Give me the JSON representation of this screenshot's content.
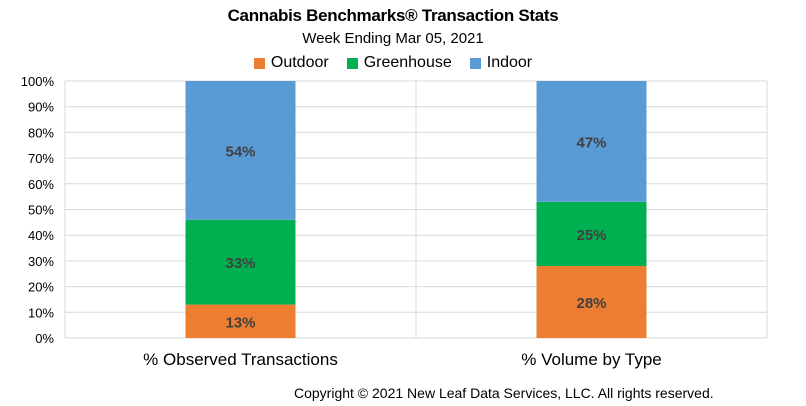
{
  "chart_data": {
    "type": "bar",
    "stacked": true,
    "title": "Cannabis Benchmarks® Transaction Stats",
    "subtitle": "Week Ending Mar 05, 2021",
    "categories": [
      "% Observed Transactions",
      "% Volume by Type"
    ],
    "series": [
      {
        "name": "Outdoor",
        "color": "#ed7d31",
        "values": [
          13,
          28
        ]
      },
      {
        "name": "Greenhouse",
        "color": "#00b050",
        "values": [
          33,
          25
        ]
      },
      {
        "name": "Indoor",
        "color": "#5b9bd5",
        "values": [
          54,
          47
        ]
      }
    ],
    "data_labels": [
      [
        "13%",
        "33%",
        "54%"
      ],
      [
        "28%",
        "25%",
        "47%"
      ]
    ],
    "ylim": [
      0,
      100
    ],
    "yticks": [
      "0%",
      "10%",
      "20%",
      "30%",
      "40%",
      "50%",
      "60%",
      "70%",
      "80%",
      "90%",
      "100%"
    ],
    "grid": true,
    "legend_position": "top"
  },
  "footer": {
    "copyright": "Copyright © 2021 New Leaf Data Services, LLC. All rights reserved."
  }
}
